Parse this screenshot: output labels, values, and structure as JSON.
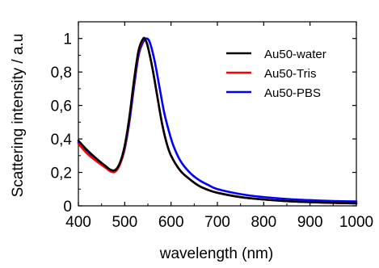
{
  "chart_data": {
    "type": "line",
    "title": "",
    "xlabel": "wavelength (nm)",
    "ylabel": "Scattering intensity / a.u",
    "xlim": [
      400,
      1000
    ],
    "ylim": [
      0,
      1.1
    ],
    "x_ticks": [
      400,
      500,
      600,
      700,
      800,
      900,
      1000
    ],
    "x_tick_labels": [
      "400",
      "500",
      "600",
      "700",
      "800",
      "900",
      "1000"
    ],
    "y_ticks": [
      0,
      0.2,
      0.4,
      0.6,
      0.8,
      1
    ],
    "y_tick_labels": [
      "0",
      "0,2",
      "0,4",
      "0,6",
      "0,8",
      "1"
    ],
    "grid": false,
    "legend_position": "top-right",
    "series": [
      {
        "name": "Au50-water",
        "color": "#000000",
        "x": [
          400,
          420,
          440,
          460,
          470,
          480,
          490,
          500,
          510,
          520,
          530,
          540,
          545,
          550,
          560,
          570,
          580,
          590,
          600,
          620,
          640,
          660,
          680,
          700,
          750,
          800,
          850,
          900,
          950,
          1000
        ],
        "y": [
          0.39,
          0.33,
          0.28,
          0.235,
          0.215,
          0.215,
          0.26,
          0.36,
          0.53,
          0.75,
          0.93,
          1.0,
          0.99,
          0.95,
          0.82,
          0.66,
          0.5,
          0.38,
          0.3,
          0.21,
          0.16,
          0.12,
          0.095,
          0.078,
          0.052,
          0.038,
          0.028,
          0.022,
          0.018,
          0.015
        ]
      },
      {
        "name": "Au50-Tris",
        "color": "#ff0000",
        "x": [
          400,
          420,
          440,
          460,
          470,
          480,
          490,
          500,
          510,
          520,
          530,
          540,
          545,
          550,
          560,
          570,
          580,
          590,
          600,
          620,
          640,
          660,
          680,
          700,
          750,
          800,
          850,
          900,
          950,
          1000
        ],
        "y": [
          0.37,
          0.31,
          0.265,
          0.225,
          0.205,
          0.205,
          0.25,
          0.35,
          0.52,
          0.74,
          0.92,
          0.995,
          0.99,
          0.95,
          0.82,
          0.66,
          0.5,
          0.38,
          0.3,
          0.21,
          0.16,
          0.12,
          0.095,
          0.078,
          0.052,
          0.038,
          0.028,
          0.022,
          0.018,
          0.015
        ]
      },
      {
        "name": "Au50-PBS",
        "color": "#0000ff",
        "x": [
          400,
          420,
          440,
          460,
          470,
          480,
          490,
          500,
          510,
          520,
          530,
          540,
          548,
          555,
          565,
          575,
          585,
          595,
          605,
          620,
          640,
          660,
          680,
          700,
          750,
          800,
          850,
          900,
          950,
          1000
        ],
        "y": [
          0.38,
          0.32,
          0.27,
          0.23,
          0.21,
          0.21,
          0.25,
          0.34,
          0.5,
          0.71,
          0.9,
          0.98,
          1.0,
          0.97,
          0.86,
          0.71,
          0.56,
          0.45,
          0.36,
          0.27,
          0.2,
          0.155,
          0.125,
          0.1,
          0.07,
          0.052,
          0.041,
          0.034,
          0.029,
          0.026
        ]
      }
    ]
  }
}
